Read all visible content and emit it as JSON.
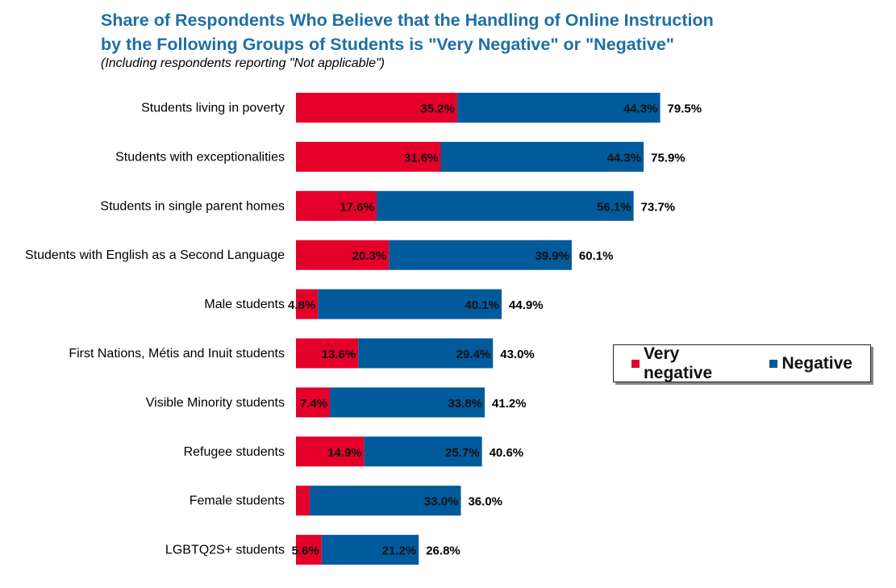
{
  "chart_data": {
    "type": "bar",
    "orientation": "horizontal",
    "stacked": true,
    "title": "Share of Respondents Who Believe that the Handling of Online Instruction by the Following Groups of Students is \"Very Negative\" or \"Negative\"",
    "title_lines": [
      "Share of Respondents Who Believe that the Handling of Online Instruction",
      "by the Following Groups of Students is \"Very Negative\" or \"Negative\""
    ],
    "subtitle": "(Including respondents reporting \"Not applicable\")",
    "categories": [
      "Students living in poverty",
      "Students with exceptionalities",
      "Students in single parent homes",
      "Students with English as a Second Language",
      "Male students",
      "First Nations, Métis and Inuit students",
      "Visible Minority students",
      "Refugee students",
      "Female students",
      "LGBTQ2S+ students"
    ],
    "series": [
      {
        "name": "Very negative",
        "color": "#e4002b",
        "values": [
          35.2,
          31.6,
          17.6,
          20.3,
          4.8,
          13.6,
          7.4,
          14.9,
          3.0,
          5.6
        ],
        "labels": [
          "35.2%",
          "31.6%",
          "17.6%",
          "20.3%",
          "4.8%",
          "13.6%",
          "7.4%",
          "14.9%",
          "",
          "5.6%"
        ]
      },
      {
        "name": "Negative",
        "color": "#005a9c",
        "values": [
          44.3,
          44.3,
          56.1,
          39.9,
          40.1,
          29.4,
          33.8,
          25.7,
          33.0,
          21.2
        ],
        "labels": [
          "44.3%",
          "44.3%",
          "56.1%",
          "39.9%",
          "40.1%",
          "29.4%",
          "33.8%",
          "25.7%",
          "33.0%",
          "21.2%"
        ]
      }
    ],
    "totals": [
      "79.5%",
      "75.9%",
      "73.7%",
      "60.1%",
      "44.9%",
      "43.0%",
      "41.2%",
      "40.6%",
      "36.0%",
      "26.8%"
    ],
    "xlim": [
      0,
      100
    ],
    "grid": false,
    "legend_position": "right"
  }
}
